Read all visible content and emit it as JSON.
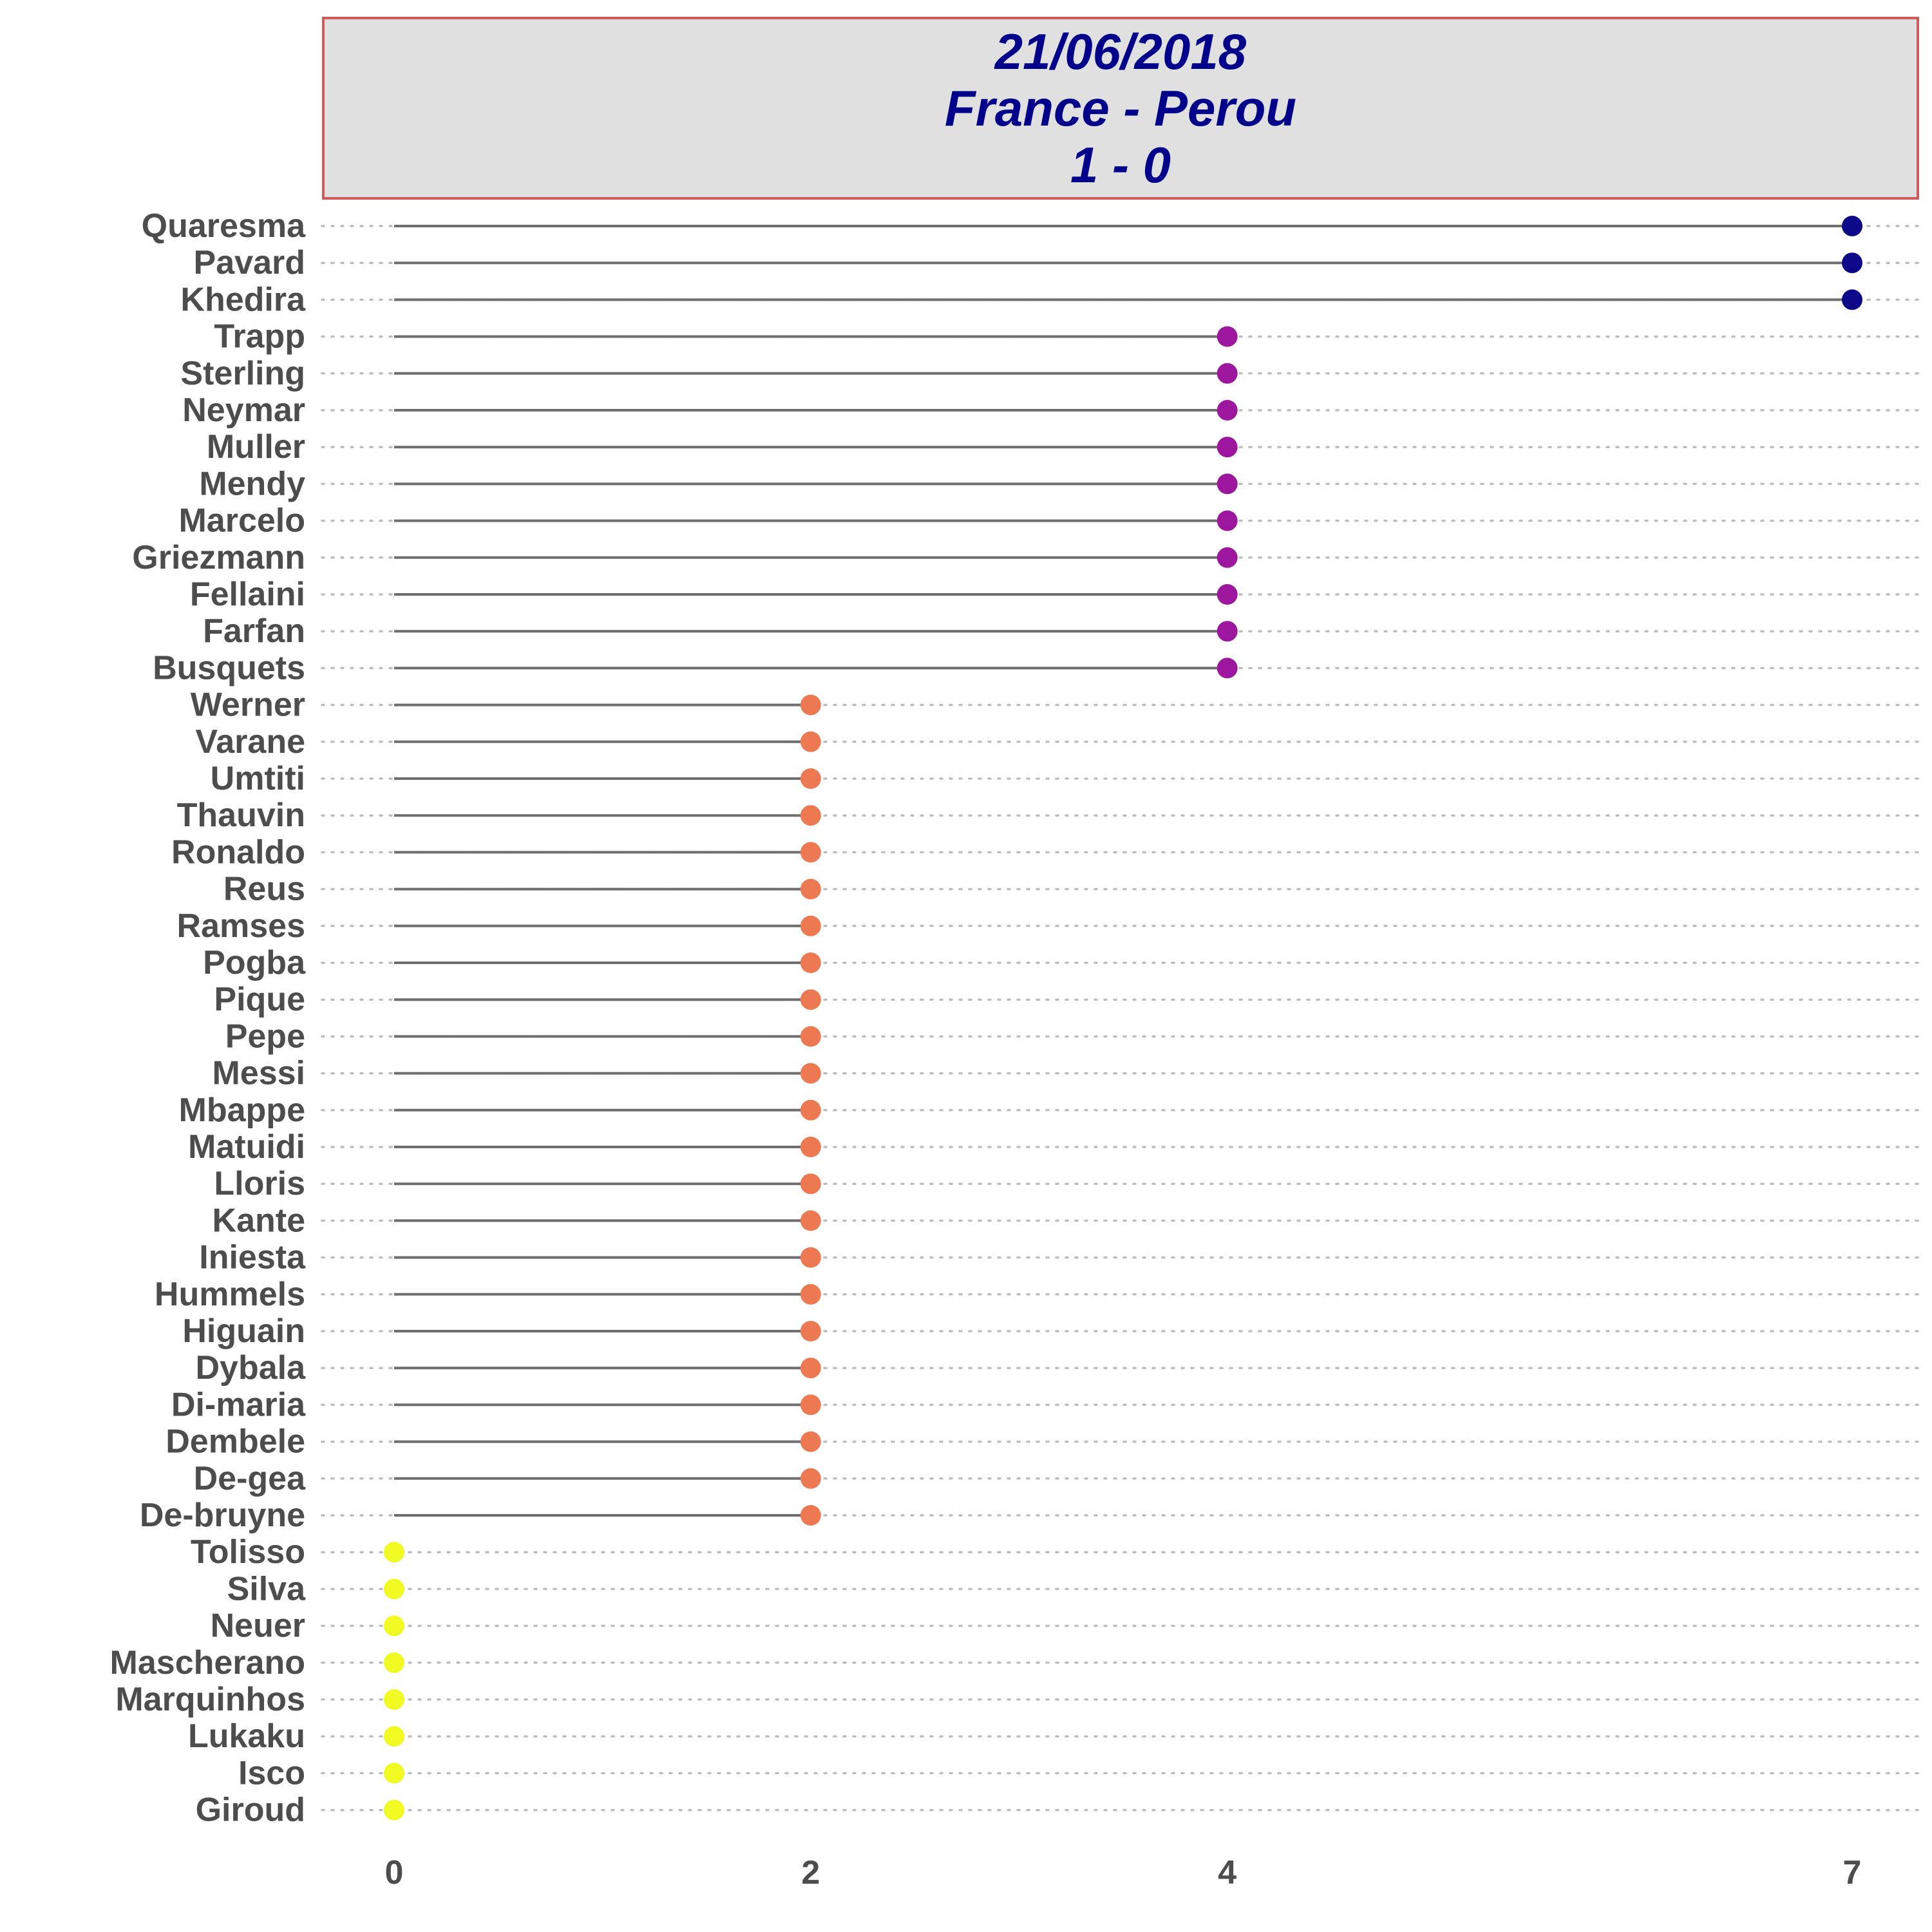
{
  "header": {
    "date": "21/06/2018",
    "match": "France - Perou",
    "score": "1 - 0"
  },
  "colors": {
    "level_7": "#0d0887",
    "level_4": "#9c179e",
    "level_2": "#ed7953",
    "level_0": "#f0f921",
    "stem": "#6e6e6e",
    "label": "#4d4d4d",
    "grid": "#bdbdbd",
    "strip_fill": "#e0e0e0",
    "strip_border": "#cd5c5c",
    "strip_text": "#00008b"
  },
  "chart_data": {
    "type": "lollipop",
    "title": "21/06/2018\nFrance - Perou\n1 - 0",
    "xlabel": "",
    "ylabel": "",
    "xlim": [
      -0.35,
      7.35
    ],
    "x_ticks": [
      0,
      2,
      4,
      7
    ],
    "grid": "dotted horizontal",
    "legend": "none",
    "categories": [
      "Quaresma",
      "Pavard",
      "Khedira",
      "Trapp",
      "Sterling",
      "Neymar",
      "Muller",
      "Mendy",
      "Marcelo",
      "Griezmann",
      "Fellaini",
      "Farfan",
      "Busquets",
      "Werner",
      "Varane",
      "Umtiti",
      "Thauvin",
      "Ronaldo",
      "Reus",
      "Ramses",
      "Pogba",
      "Pique",
      "Pepe",
      "Messi",
      "Mbappe",
      "Matuidi",
      "Lloris",
      "Kante",
      "Iniesta",
      "Hummels",
      "Higuain",
      "Dybala",
      "Di-maria",
      "Dembele",
      "De-gea",
      "De-bruyne",
      "Tolisso",
      "Silva",
      "Neuer",
      "Mascherano",
      "Marquinhos",
      "Lukaku",
      "Isco",
      "Giroud"
    ],
    "values": [
      7,
      7,
      7,
      4,
      4,
      4,
      4,
      4,
      4,
      4,
      4,
      4,
      4,
      2,
      2,
      2,
      2,
      2,
      2,
      2,
      2,
      2,
      2,
      2,
      2,
      2,
      2,
      2,
      2,
      2,
      2,
      2,
      2,
      2,
      2,
      2,
      0,
      0,
      0,
      0,
      0,
      0,
      0,
      0
    ]
  }
}
